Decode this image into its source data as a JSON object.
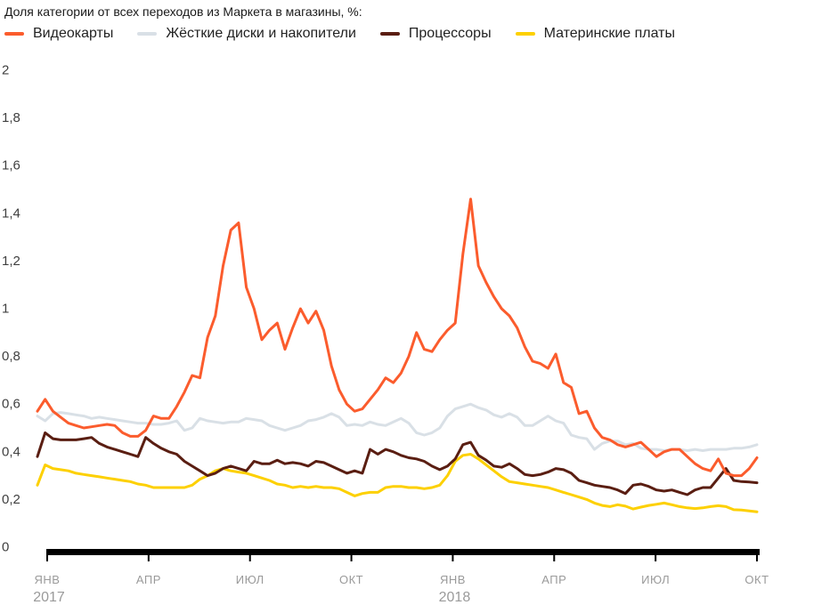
{
  "chart_data": {
    "type": "line",
    "title": "Доля категории от всех переходов из Маркета в магазины, %:",
    "unit": "%",
    "ylim": [
      0,
      2
    ],
    "grid": false,
    "legend_position": "top",
    "x_granularity": "weekly",
    "colors": {
      "axis": "#000000",
      "y_label": "#404040",
      "x_label": "#9a9a9a",
      "title": "#1a1a1a"
    },
    "y_ticks": [
      {
        "v": 2,
        "label": "2"
      },
      {
        "v": 1.8,
        "label": "1,8"
      },
      {
        "v": 1.6,
        "label": "1,6"
      },
      {
        "v": 1.4,
        "label": "1,4"
      },
      {
        "v": 1.2,
        "label": "1,2"
      },
      {
        "v": 1,
        "label": "1"
      },
      {
        "v": 0.8,
        "label": "0,8"
      },
      {
        "v": 0.6,
        "label": "0,6"
      },
      {
        "v": 0.4,
        "label": "0,4"
      },
      {
        "v": 0.2,
        "label": "0,2"
      },
      {
        "v": 0,
        "label": "0"
      }
    ],
    "x_ticks": [
      {
        "label": "ЯНВ",
        "year": "2017"
      },
      {
        "label": "АПР"
      },
      {
        "label": "ИЮЛ"
      },
      {
        "label": "ОКТ"
      },
      {
        "label": "ЯНВ",
        "year": "2018"
      },
      {
        "label": "АПР"
      },
      {
        "label": "ИЮЛ"
      },
      {
        "label": "ОКТ"
      }
    ],
    "series": [
      {
        "id": "videokarty",
        "name": "Видеокарты",
        "color": "#fb5c2d",
        "values": [
          0.57,
          0.62,
          0.57,
          0.545,
          0.52,
          0.51,
          0.5,
          0.505,
          0.51,
          0.515,
          0.51,
          0.48,
          0.465,
          0.465,
          0.49,
          0.55,
          0.54,
          0.54,
          0.59,
          0.65,
          0.72,
          0.71,
          0.88,
          0.97,
          1.18,
          1.33,
          1.36,
          1.09,
          1.0,
          0.87,
          0.91,
          0.94,
          0.83,
          0.92,
          1.0,
          0.94,
          0.99,
          0.91,
          0.76,
          0.66,
          0.6,
          0.57,
          0.58,
          0.62,
          0.66,
          0.71,
          0.69,
          0.73,
          0.8,
          0.9,
          0.83,
          0.82,
          0.87,
          0.91,
          0.94,
          1.23,
          1.46,
          1.18,
          1.11,
          1.05,
          1.0,
          0.97,
          0.92,
          0.84,
          0.78,
          0.77,
          0.75,
          0.81,
          0.69,
          0.67,
          0.56,
          0.57,
          0.5,
          0.46,
          0.45,
          0.43,
          0.42,
          0.43,
          0.44,
          0.41,
          0.38,
          0.4,
          0.41,
          0.41,
          0.38,
          0.35,
          0.33,
          0.32,
          0.37,
          0.31,
          0.3,
          0.3,
          0.33,
          0.375
        ]
      },
      {
        "id": "zhyostkie-diski",
        "name": "Жёсткие диски и накопители",
        "color": "#d9e0e6",
        "values": [
          0.55,
          0.53,
          0.56,
          0.565,
          0.56,
          0.555,
          0.55,
          0.54,
          0.545,
          0.54,
          0.535,
          0.53,
          0.525,
          0.52,
          0.52,
          0.515,
          0.515,
          0.52,
          0.53,
          0.49,
          0.5,
          0.54,
          0.53,
          0.525,
          0.52,
          0.525,
          0.525,
          0.54,
          0.535,
          0.53,
          0.51,
          0.5,
          0.49,
          0.5,
          0.51,
          0.53,
          0.535,
          0.545,
          0.56,
          0.545,
          0.51,
          0.515,
          0.51,
          0.525,
          0.515,
          0.51,
          0.525,
          0.54,
          0.52,
          0.48,
          0.47,
          0.48,
          0.5,
          0.55,
          0.58,
          0.59,
          0.6,
          0.585,
          0.575,
          0.555,
          0.545,
          0.56,
          0.545,
          0.51,
          0.51,
          0.53,
          0.55,
          0.53,
          0.52,
          0.47,
          0.46,
          0.455,
          0.41,
          0.435,
          0.445,
          0.445,
          0.43,
          0.435,
          0.415,
          0.41,
          0.41,
          0.405,
          0.41,
          0.41,
          0.405,
          0.41,
          0.405,
          0.41,
          0.41,
          0.41,
          0.415,
          0.415,
          0.42,
          0.43
        ]
      },
      {
        "id": "processory",
        "name": "Процессоры",
        "color": "#5a1e12",
        "values": [
          0.38,
          0.48,
          0.455,
          0.45,
          0.45,
          0.45,
          0.455,
          0.46,
          0.435,
          0.42,
          0.41,
          0.4,
          0.39,
          0.38,
          0.46,
          0.435,
          0.415,
          0.4,
          0.39,
          0.36,
          0.34,
          0.32,
          0.3,
          0.31,
          0.33,
          0.34,
          0.33,
          0.32,
          0.36,
          0.35,
          0.35,
          0.365,
          0.35,
          0.355,
          0.35,
          0.34,
          0.36,
          0.355,
          0.34,
          0.325,
          0.31,
          0.32,
          0.31,
          0.41,
          0.39,
          0.41,
          0.4,
          0.385,
          0.375,
          0.37,
          0.36,
          0.34,
          0.325,
          0.34,
          0.37,
          0.43,
          0.44,
          0.385,
          0.365,
          0.34,
          0.335,
          0.35,
          0.33,
          0.305,
          0.3,
          0.305,
          0.315,
          0.33,
          0.325,
          0.31,
          0.28,
          0.27,
          0.26,
          0.255,
          0.25,
          0.24,
          0.225,
          0.26,
          0.265,
          0.255,
          0.24,
          0.235,
          0.24,
          0.23,
          0.22,
          0.24,
          0.25,
          0.25,
          0.29,
          0.33,
          0.28,
          0.275,
          0.273,
          0.27
        ]
      },
      {
        "id": "materinskie-platy",
        "name": "Материнские платы",
        "color": "#fdd000",
        "values": [
          0.26,
          0.345,
          0.33,
          0.325,
          0.32,
          0.31,
          0.305,
          0.3,
          0.295,
          0.29,
          0.285,
          0.28,
          0.275,
          0.265,
          0.26,
          0.25,
          0.25,
          0.25,
          0.25,
          0.25,
          0.26,
          0.285,
          0.3,
          0.32,
          0.33,
          0.32,
          0.315,
          0.31,
          0.3,
          0.29,
          0.28,
          0.265,
          0.26,
          0.25,
          0.255,
          0.25,
          0.255,
          0.25,
          0.25,
          0.245,
          0.23,
          0.215,
          0.225,
          0.23,
          0.23,
          0.25,
          0.255,
          0.255,
          0.25,
          0.25,
          0.245,
          0.25,
          0.26,
          0.3,
          0.36,
          0.385,
          0.39,
          0.37,
          0.345,
          0.32,
          0.295,
          0.275,
          0.27,
          0.265,
          0.26,
          0.255,
          0.25,
          0.24,
          0.23,
          0.22,
          0.21,
          0.2,
          0.185,
          0.175,
          0.17,
          0.178,
          0.172,
          0.16,
          0.168,
          0.175,
          0.18,
          0.185,
          0.178,
          0.17,
          0.165,
          0.162,
          0.165,
          0.17,
          0.174,
          0.17,
          0.157,
          0.156,
          0.152,
          0.148
        ]
      }
    ]
  }
}
